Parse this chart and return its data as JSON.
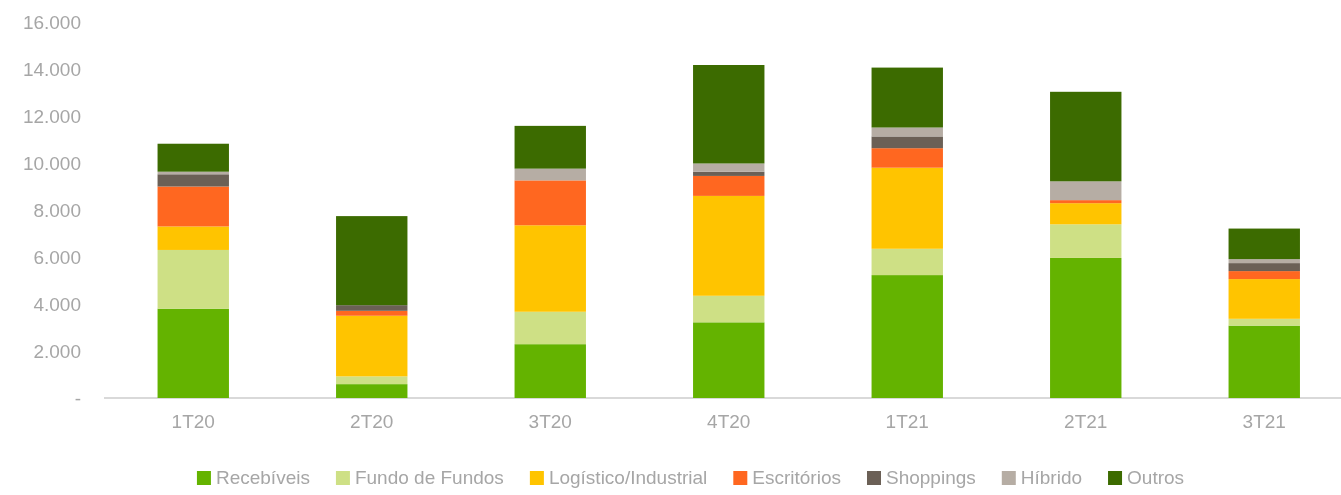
{
  "chart_data": {
    "type": "bar",
    "stacked": true,
    "categories": [
      "1T20",
      "2T20",
      "3T20",
      "4T20",
      "1T21",
      "2T21",
      "3T21"
    ],
    "series": [
      {
        "name": "Recebíveis",
        "color": "#64b300",
        "values": [
          3800,
          590,
          2290,
          3220,
          5230,
          5960,
          3080
        ]
      },
      {
        "name": "Fundo de Fundos",
        "color": "#cee085",
        "values": [
          2500,
          330,
          1380,
          1130,
          1120,
          1430,
          290
        ]
      },
      {
        "name": "Logístico/Industrial",
        "color": "#ffc400",
        "values": [
          1000,
          2580,
          3680,
          4250,
          3450,
          900,
          1690
        ]
      },
      {
        "name": "Escritórios",
        "color": "#ff6720",
        "values": [
          1700,
          210,
          1910,
          850,
          830,
          130,
          340
        ]
      },
      {
        "name": "Shoppings",
        "color": "#6b6056",
        "values": [
          520,
          240,
          0,
          180,
          500,
          0,
          340
        ]
      },
      {
        "name": "Híbrido",
        "color": "#b6ada4",
        "values": [
          110,
          0,
          500,
          350,
          380,
          800,
          170
        ]
      },
      {
        "name": "Outros",
        "color": "#3c6b00",
        "values": [
          1190,
          3790,
          1820,
          4190,
          2550,
          3810,
          1300
        ]
      }
    ],
    "ylim": [
      0,
      16000
    ],
    "yticks": [
      {
        "value": 0,
        "label": "-"
      },
      {
        "value": 2000,
        "label": "2.000"
      },
      {
        "value": 4000,
        "label": "4.000"
      },
      {
        "value": 6000,
        "label": "6.000"
      },
      {
        "value": 8000,
        "label": "8.000"
      },
      {
        "value": 10000,
        "label": "10.000"
      },
      {
        "value": 12000,
        "label": "12.000"
      },
      {
        "value": 14000,
        "label": "14.000"
      },
      {
        "value": 16000,
        "label": "16.000"
      }
    ],
    "grid": false,
    "legend": "bottom"
  }
}
